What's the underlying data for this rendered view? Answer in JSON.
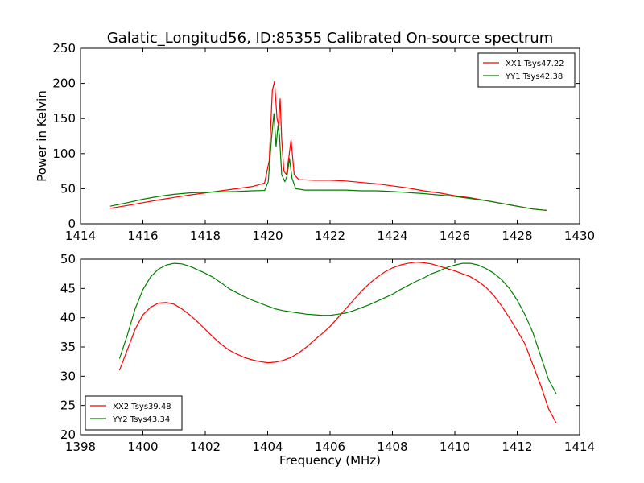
{
  "chart_data": [
    {
      "type": "line",
      "title": "Galatic_Longitud56, ID:85355 Calibrated On-source spectrum",
      "ylabel": "Power in Kelvin",
      "xlabel": "",
      "xlim": [
        1414,
        1430
      ],
      "ylim": [
        0,
        250
      ],
      "xticks": [
        1414,
        1416,
        1418,
        1420,
        1422,
        1424,
        1426,
        1428,
        1430
      ],
      "yticks": [
        0,
        50,
        100,
        150,
        200,
        250
      ],
      "grid": false,
      "legend_position": "top-right",
      "series": [
        {
          "name": "XX1 Tsys47.22",
          "color": "#ff0000",
          "x": [
            1414.95,
            1415.5,
            1416,
            1416.5,
            1417,
            1417.5,
            1418,
            1418.5,
            1419,
            1419.5,
            1419.9,
            1420.05,
            1420.15,
            1420.22,
            1420.3,
            1420.35,
            1420.4,
            1420.45,
            1420.52,
            1420.6,
            1420.68,
            1420.75,
            1420.85,
            1421,
            1421.5,
            1422,
            1422.5,
            1423,
            1423.5,
            1424,
            1424.5,
            1425,
            1425.5,
            1426,
            1426.5,
            1427,
            1427.5,
            1428,
            1428.5,
            1428.95
          ],
          "values": [
            22,
            26,
            30,
            34,
            37.5,
            41,
            44,
            47,
            50,
            53,
            58,
            90,
            190,
            203,
            150,
            140,
            178,
            120,
            75,
            70,
            95,
            120,
            70,
            63,
            62,
            62,
            61,
            59,
            57,
            54,
            51,
            47,
            44,
            40,
            37,
            33,
            29,
            25,
            21,
            19
          ]
        },
        {
          "name": "YY1 Tsys42.38",
          "color": "#008000",
          "x": [
            1414.95,
            1415.5,
            1416,
            1416.5,
            1417,
            1417.5,
            1418,
            1418.5,
            1419,
            1419.5,
            1419.9,
            1420.02,
            1420.12,
            1420.2,
            1420.27,
            1420.33,
            1420.38,
            1420.45,
            1420.55,
            1420.62,
            1420.7,
            1420.78,
            1420.9,
            1421.2,
            1421.5,
            1422,
            1422.5,
            1423,
            1423.5,
            1424,
            1424.5,
            1425,
            1425.5,
            1426,
            1426.5,
            1427,
            1427.5,
            1428,
            1428.5,
            1428.95
          ],
          "values": [
            25,
            30,
            35,
            39,
            42,
            44,
            45,
            45.5,
            46,
            47,
            47.5,
            60,
            120,
            157,
            110,
            140,
            125,
            70,
            60,
            68,
            93,
            65,
            50,
            48,
            48,
            48,
            48,
            47,
            47,
            46,
            44.5,
            43,
            41,
            39,
            36,
            33,
            29,
            25,
            21,
            19
          ]
        }
      ]
    },
    {
      "type": "line",
      "title": "",
      "xlabel": "Frequency (MHz)",
      "ylabel": "",
      "xlim": [
        1398,
        1414
      ],
      "ylim": [
        20,
        50
      ],
      "xticks": [
        1398,
        1400,
        1402,
        1404,
        1406,
        1408,
        1410,
        1412,
        1414
      ],
      "yticks": [
        20,
        25,
        30,
        35,
        40,
        45,
        50
      ],
      "grid": false,
      "legend_position": "bottom-left",
      "series": [
        {
          "name": "XX2 Tsys39.48",
          "color": "#ff0000",
          "x": [
            1399.25,
            1399.5,
            1399.75,
            1400,
            1400.25,
            1400.5,
            1400.75,
            1401,
            1401.25,
            1401.5,
            1401.75,
            1402,
            1402.25,
            1402.5,
            1402.75,
            1403,
            1403.25,
            1403.5,
            1403.75,
            1404,
            1404.25,
            1404.5,
            1404.75,
            1405,
            1405.25,
            1405.5,
            1405.75,
            1406,
            1406.25,
            1406.5,
            1406.75,
            1407,
            1407.25,
            1407.5,
            1407.75,
            1408,
            1408.25,
            1408.5,
            1408.75,
            1409,
            1409.25,
            1409.5,
            1409.75,
            1410,
            1410.25,
            1410.5,
            1410.75,
            1411,
            1411.25,
            1411.5,
            1411.75,
            1412,
            1412.25,
            1412.5,
            1412.75,
            1413,
            1413.25
          ],
          "values": [
            31,
            34.5,
            38,
            40.5,
            41.8,
            42.5,
            42.6,
            42.3,
            41.5,
            40.5,
            39.3,
            38,
            36.7,
            35.5,
            34.5,
            33.8,
            33.2,
            32.8,
            32.5,
            32.3,
            32.4,
            32.7,
            33.2,
            34,
            35,
            36.2,
            37.3,
            38.5,
            40,
            41.5,
            43,
            44.5,
            45.8,
            46.9,
            47.8,
            48.5,
            49,
            49.3,
            49.5,
            49.4,
            49.2,
            48.8,
            48.4,
            48,
            47.5,
            47,
            46.2,
            45.2,
            43.8,
            42,
            40,
            37.8,
            35.5,
            32,
            28.5,
            24.5,
            22
          ]
        },
        {
          "name": "YY2 Tsys43.34",
          "color": "#008000",
          "x": [
            1399.25,
            1399.5,
            1399.75,
            1400,
            1400.25,
            1400.5,
            1400.75,
            1401,
            1401.25,
            1401.5,
            1401.75,
            1402,
            1402.25,
            1402.5,
            1402.75,
            1403,
            1403.25,
            1403.5,
            1403.75,
            1404,
            1404.25,
            1404.5,
            1404.75,
            1405,
            1405.25,
            1405.5,
            1405.75,
            1406,
            1406.25,
            1406.5,
            1406.75,
            1407,
            1407.25,
            1407.5,
            1407.75,
            1408,
            1408.25,
            1408.5,
            1408.75,
            1409,
            1409.25,
            1409.5,
            1409.75,
            1410,
            1410.25,
            1410.5,
            1410.75,
            1411,
            1411.25,
            1411.5,
            1411.75,
            1412,
            1412.25,
            1412.5,
            1412.75,
            1413,
            1413.25
          ],
          "values": [
            33,
            37,
            41.5,
            44.8,
            47,
            48.3,
            49,
            49.3,
            49.2,
            48.8,
            48.2,
            47.6,
            46.9,
            46,
            45,
            44.3,
            43.6,
            43,
            42.5,
            42,
            41.5,
            41.2,
            41,
            40.8,
            40.6,
            40.5,
            40.4,
            40.4,
            40.6,
            40.8,
            41.2,
            41.7,
            42.2,
            42.8,
            43.4,
            44,
            44.8,
            45.5,
            46.2,
            46.8,
            47.5,
            48,
            48.6,
            49,
            49.3,
            49.3,
            49,
            48.4,
            47.6,
            46.5,
            45,
            43,
            40.5,
            37.5,
            33.5,
            29.5,
            27
          ]
        }
      ]
    }
  ]
}
